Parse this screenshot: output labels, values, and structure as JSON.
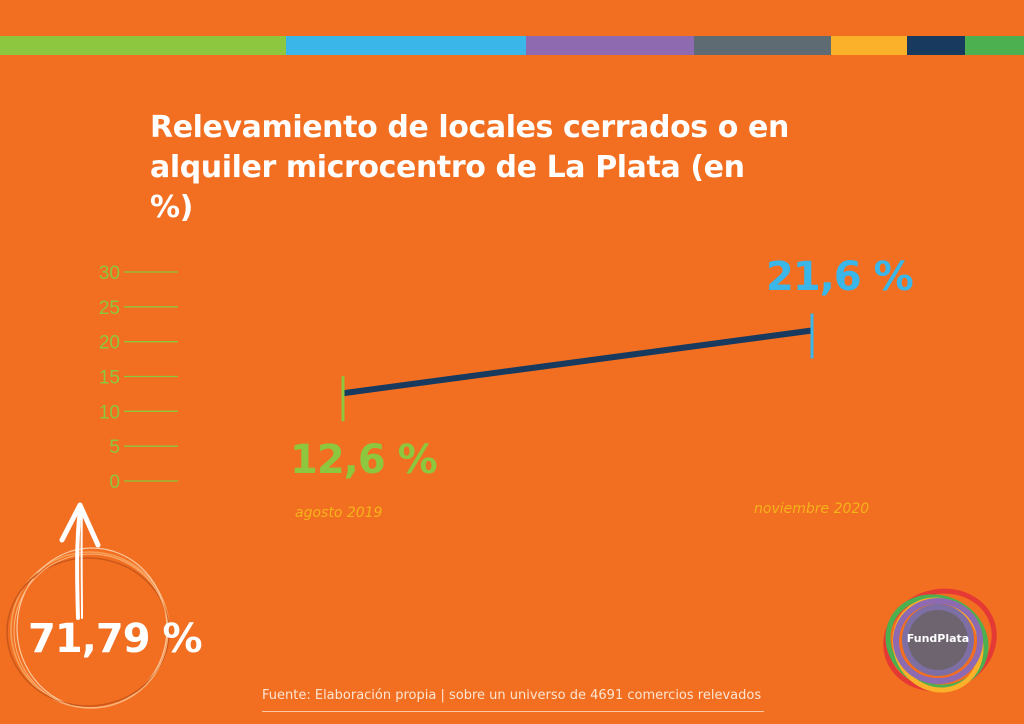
{
  "title": "Relevamiento de locales cerrados o en alquiler microcentro de La Plata (en %)",
  "colors": {
    "background": "#f26f21",
    "line": "#173a5e",
    "first_point": "#8dc63f",
    "last_point": "#3bb6e8",
    "axis": "#8dc63f",
    "category_label": "#f5b21b",
    "strip": [
      "#8dc63f",
      "#3bb6e8",
      "#8e6bb0",
      "#5f6b73",
      "#fbb12a",
      "#173a5e",
      "#4caf50"
    ]
  },
  "chart_data": {
    "type": "line",
    "title": "Relevamiento de locales cerrados o en alquiler microcentro de La Plata (en %)",
    "categories": [
      "agosto 2019",
      "noviembre 2020"
    ],
    "series": [
      {
        "values": [
          12.6,
          21.6
        ]
      }
    ],
    "data_labels": [
      "12,6 %",
      "21,6 %"
    ],
    "yticks": [
      0,
      5,
      10,
      15,
      20,
      25,
      30
    ],
    "ylim": [
      0,
      30
    ],
    "xlabel": "",
    "ylabel": "",
    "grid": false,
    "legend": "none"
  },
  "stat": {
    "value": "71,79 %",
    "icon": "up-arrow-icon"
  },
  "source": "Fuente: Elaboración propia | sobre un universo de 4691 comercios relevados",
  "logo": {
    "text": "FundPlata"
  }
}
